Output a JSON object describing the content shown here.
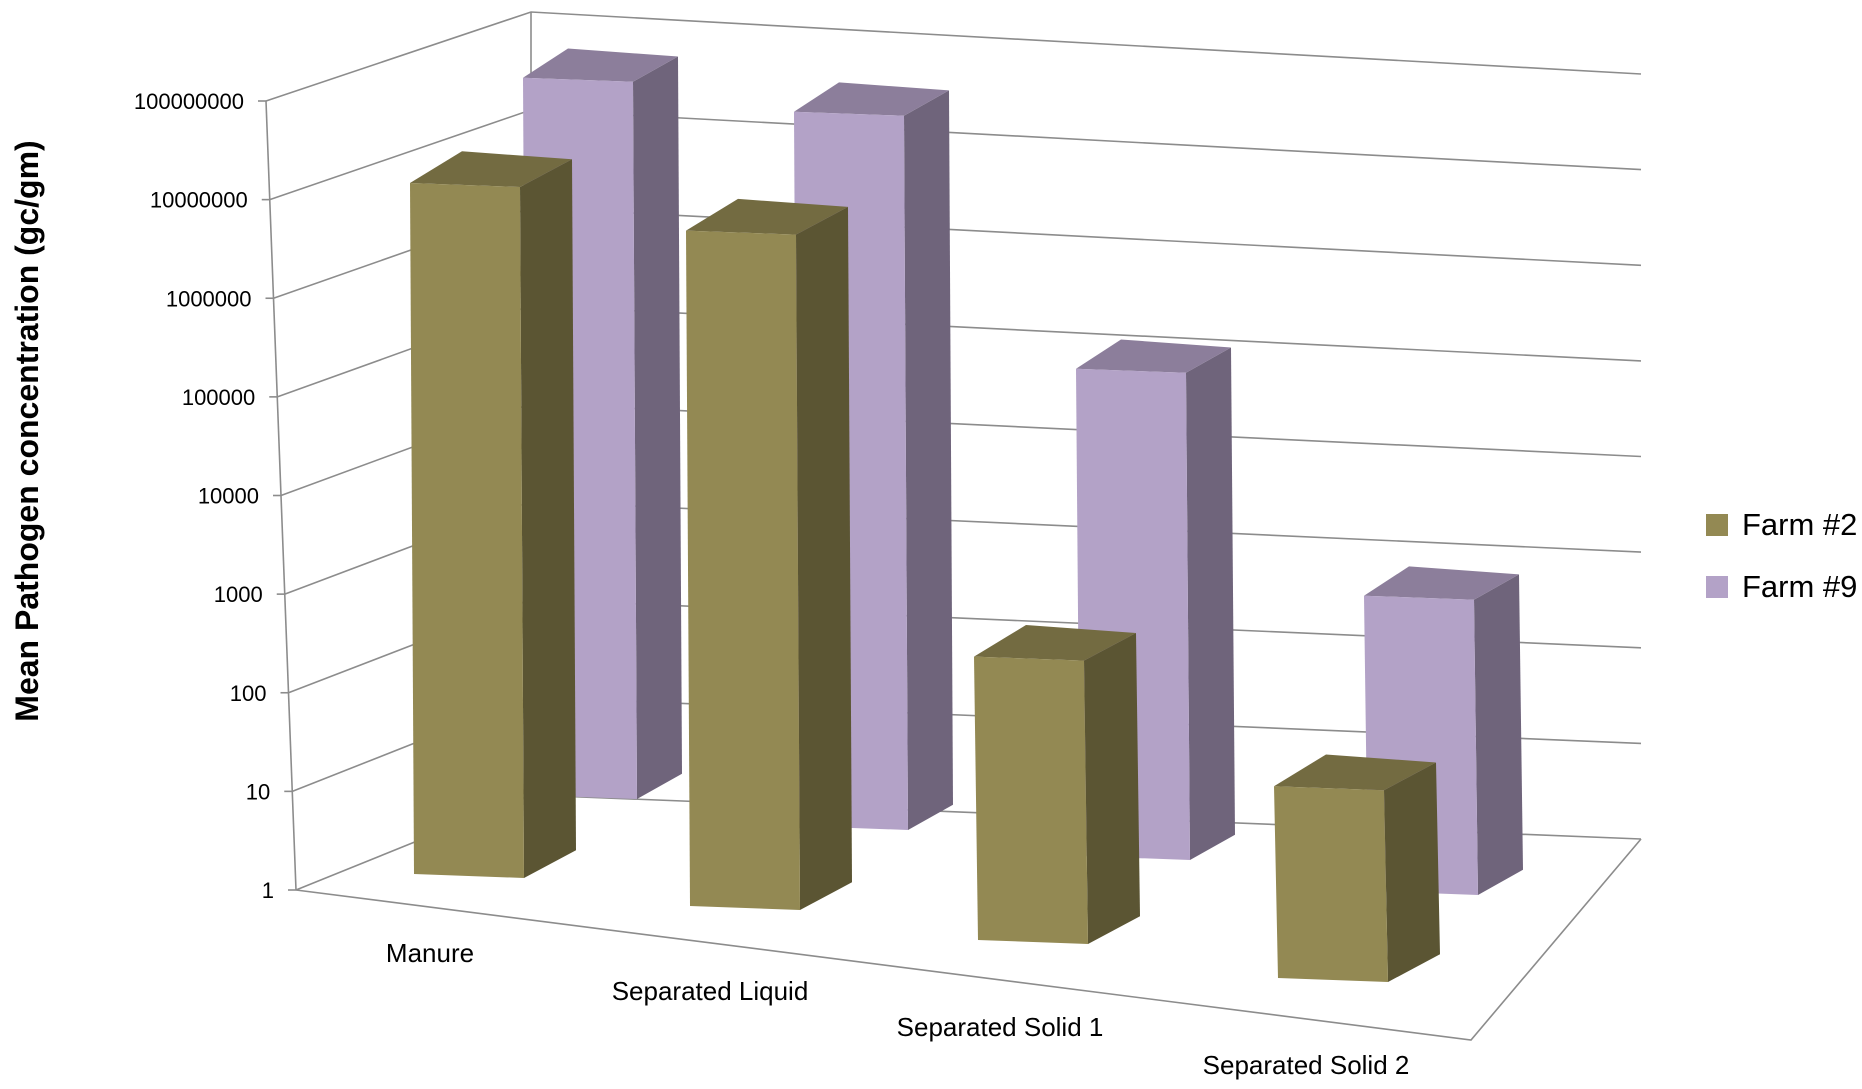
{
  "chart_data": {
    "type": "bar",
    "title": "",
    "xlabel": "",
    "ylabel": "Mean Pathogen concentration (gc/gm)",
    "scale": "log",
    "ylim": [
      1,
      100000000
    ],
    "yticks": [
      "1",
      "10",
      "100",
      "1000",
      "10000",
      "100000",
      "1000000",
      "10000000",
      "100000000"
    ],
    "categories": [
      "Manure",
      "Separated Liquid",
      "Separated Solid 1",
      "Separated Solid 2"
    ],
    "series": [
      {
        "name": "Farm #2",
        "color": "#938953",
        "values": [
          16000000,
          11000000,
          900,
          100
        ]
      },
      {
        "name": "Farm #9",
        "color": "#b3a2c7",
        "values": [
          30000000,
          28000000,
          120000,
          1200
        ]
      }
    ],
    "legend_position": "right",
    "grid": true,
    "projection": "3d"
  }
}
